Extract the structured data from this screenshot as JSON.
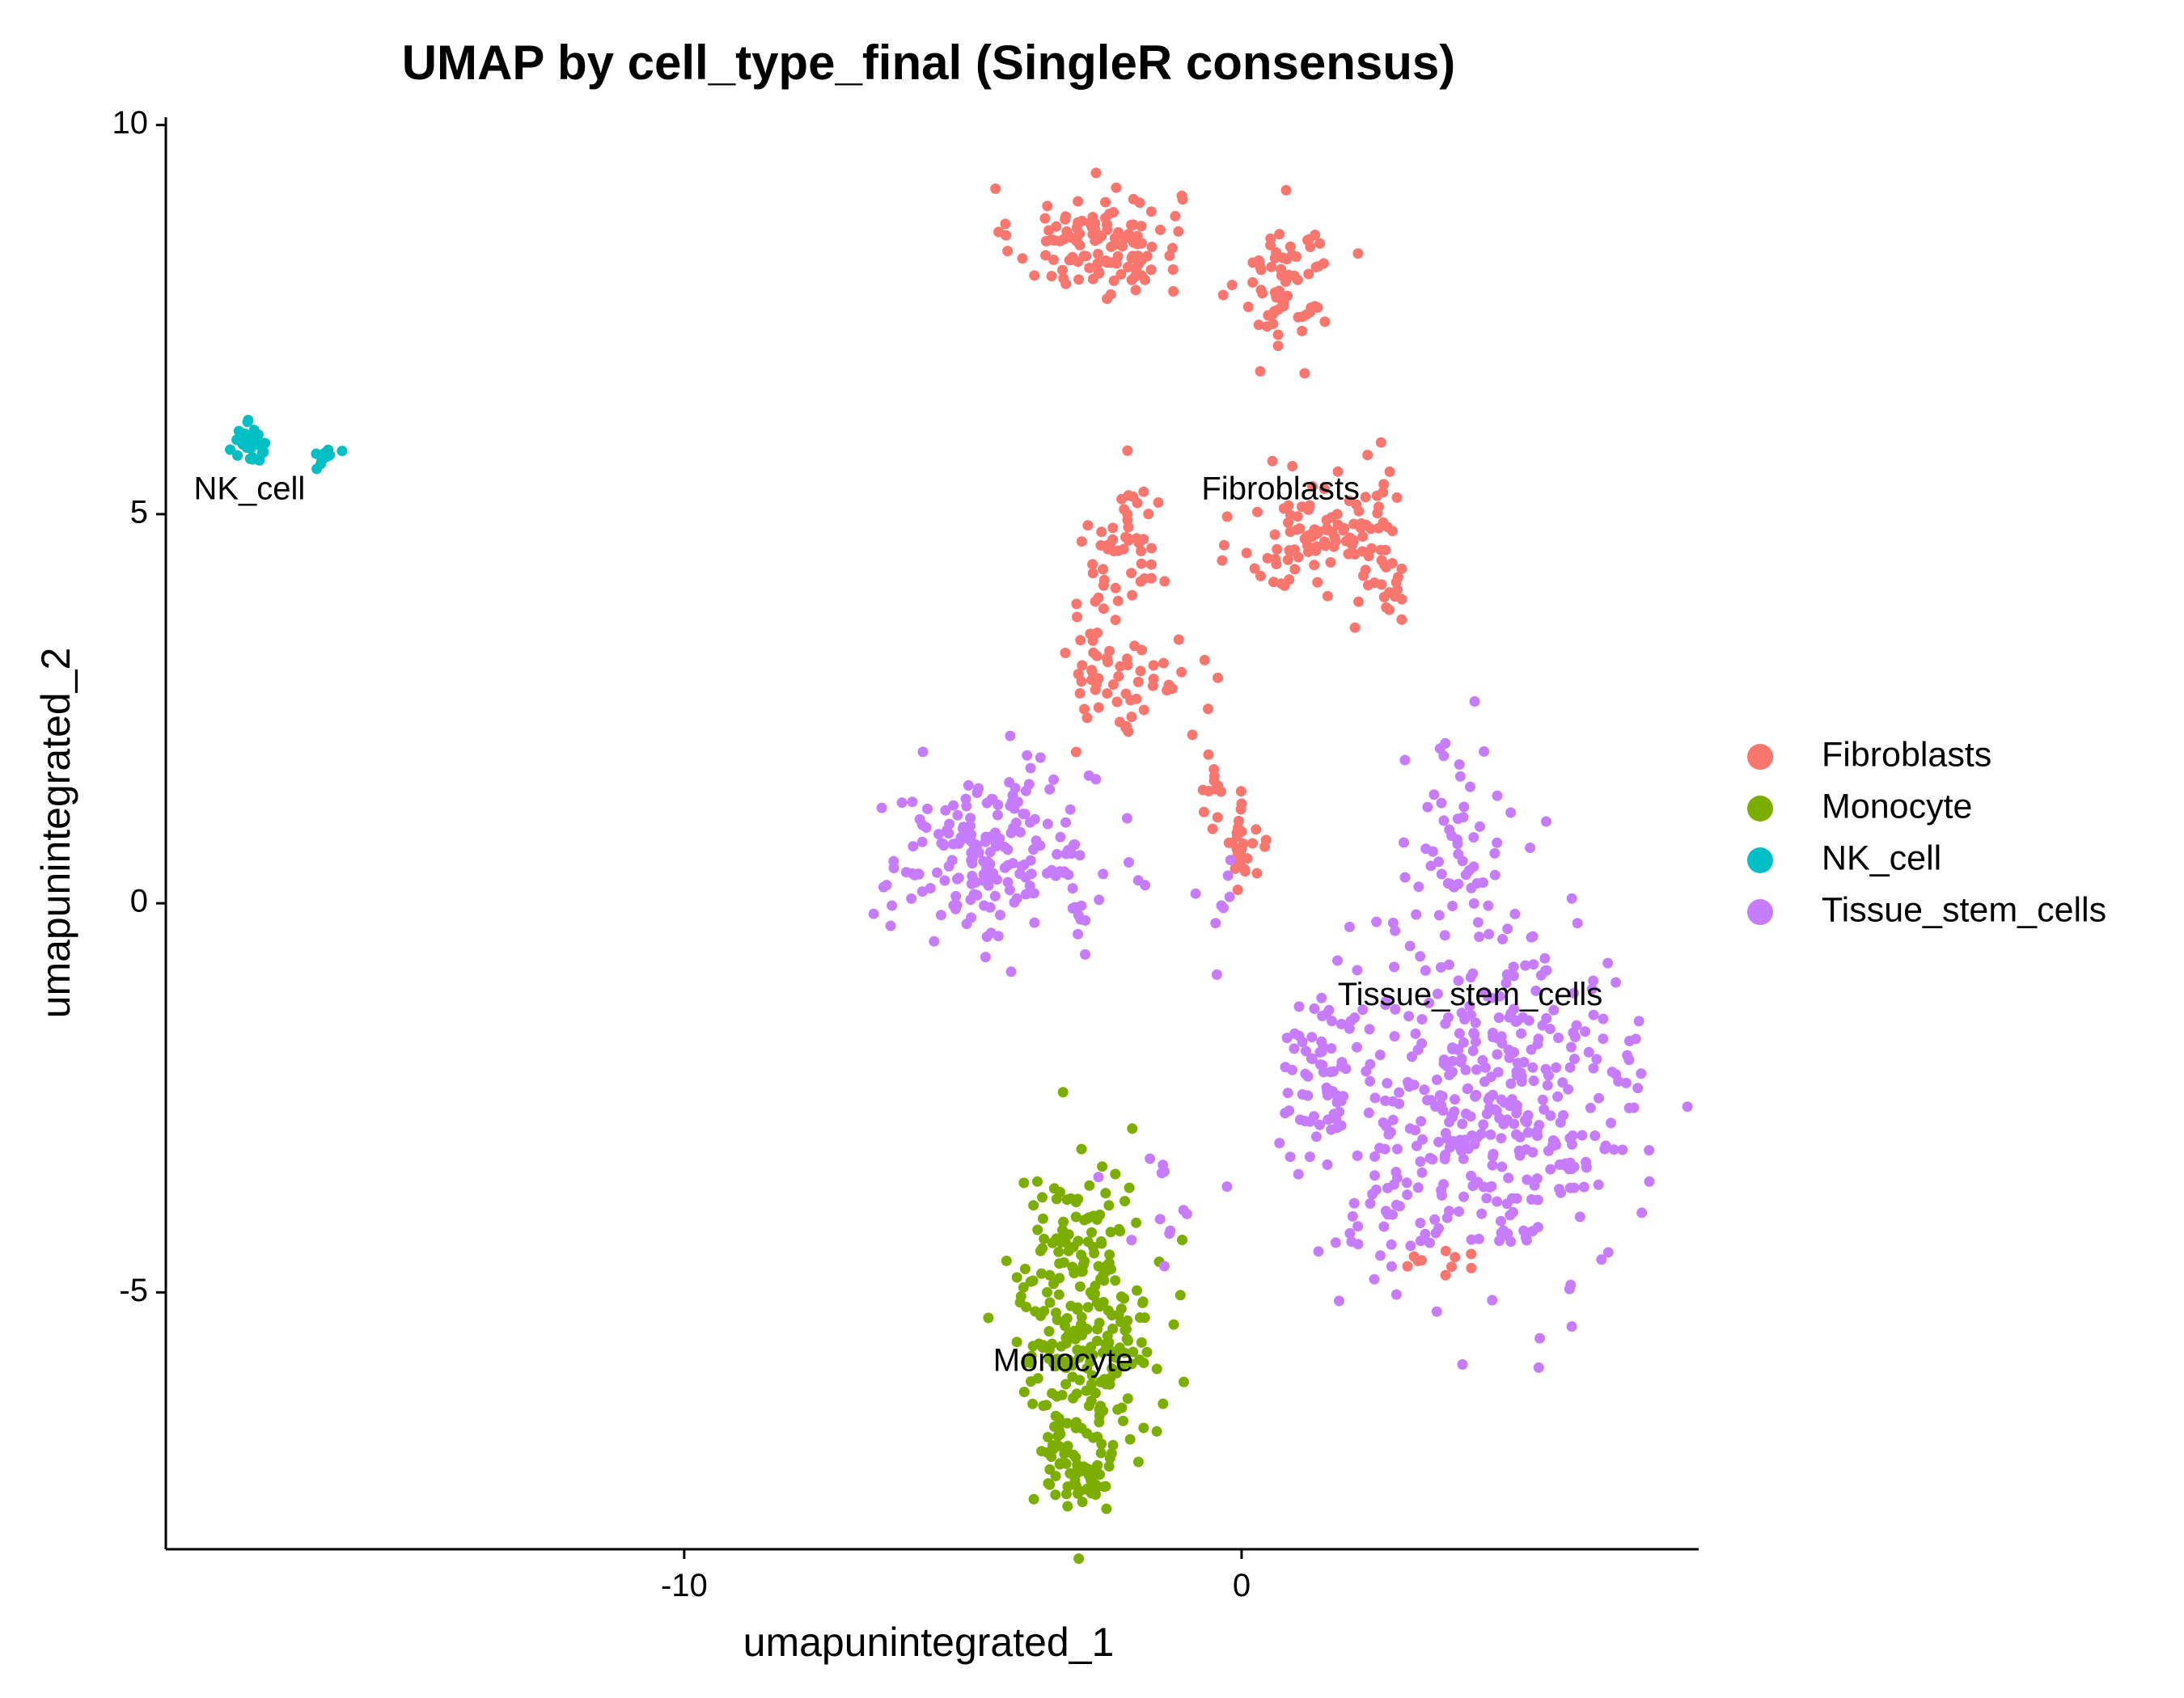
{
  "chart_data": {
    "type": "scatter",
    "title": "UMAP by cell_type_final (SingleR consensus)",
    "xlabel": "umapunintegrated_1",
    "ylabel": "umapunintegrated_2",
    "xlim": [
      -19.3,
      8.2
    ],
    "ylim": [
      -8.3,
      10.1
    ],
    "x_ticks": [
      -10,
      0
    ],
    "y_ticks": [
      -5,
      0,
      5,
      10
    ],
    "grid": false,
    "legend_position": "right",
    "series": [
      {
        "name": "Fibroblasts",
        "color": "#F8766D",
        "clusters": [
          {
            "cx": -2.6,
            "cy": 8.5,
            "sx": 0.75,
            "sy": 0.35,
            "n": 120
          },
          {
            "cx": 0.8,
            "cy": 8.0,
            "sx": 0.4,
            "sy": 0.45,
            "n": 70
          },
          {
            "cx": -2.0,
            "cy": 4.6,
            "sx": 0.35,
            "sy": 0.45,
            "n": 45
          },
          {
            "cx": -2.6,
            "cy": 3.2,
            "sx": 0.25,
            "sy": 0.55,
            "n": 35
          },
          {
            "cx": -1.7,
            "cy": 2.8,
            "sx": 0.5,
            "sy": 0.3,
            "n": 30
          },
          {
            "cx": 1.2,
            "cy": 4.7,
            "sx": 0.6,
            "sy": 0.35,
            "n": 80
          },
          {
            "cx": 2.5,
            "cy": 4.6,
            "sx": 0.3,
            "sy": 0.6,
            "n": 50
          },
          {
            "cx": 0.0,
            "cy": 0.8,
            "sx": 0.25,
            "sy": 0.35,
            "n": 30
          },
          {
            "cx": -0.6,
            "cy": 1.5,
            "sx": 0.2,
            "sy": 0.3,
            "n": 10
          },
          {
            "cx": 3.6,
            "cy": -4.5,
            "sx": 0.5,
            "sy": 0.15,
            "n": 10
          }
        ],
        "annotation": {
          "text": "Fibroblasts",
          "x": 0.7,
          "y": 5.3
        }
      },
      {
        "name": "Monocyte",
        "color": "#7CAE00",
        "clusters": [
          {
            "cx": -2.8,
            "cy": -5.3,
            "sx": 0.6,
            "sy": 0.95,
            "n": 260
          },
          {
            "cx": -2.9,
            "cy": -7.2,
            "sx": 0.4,
            "sy": 0.3,
            "n": 60
          }
        ],
        "annotation": {
          "text": "Monocyte",
          "x": -3.2,
          "y": -5.9
        }
      },
      {
        "name": "NK_cell",
        "color": "#00BFC4",
        "clusters": [
          {
            "cx": -17.8,
            "cy": 5.9,
            "sx": 0.15,
            "sy": 0.12,
            "n": 30
          },
          {
            "cx": -16.4,
            "cy": 5.75,
            "sx": 0.2,
            "sy": 0.06,
            "n": 12
          }
        ],
        "annotation": {
          "text": "NK_cell",
          "x": -17.8,
          "y": 5.3
        }
      },
      {
        "name": "Tissue_stem_cells",
        "color": "#C77CFF",
        "clusters": [
          {
            "cx": -4.5,
            "cy": 0.6,
            "sx": 0.95,
            "sy": 0.55,
            "n": 190
          },
          {
            "cx": -3.0,
            "cy": -0.3,
            "sx": 0.12,
            "sy": 0.25,
            "n": 6
          },
          {
            "cx": 4.6,
            "cy": -2.6,
            "sx": 1.3,
            "sy": 1.1,
            "n": 380
          },
          {
            "cx": 1.5,
            "cy": -2.1,
            "sx": 0.45,
            "sy": 0.55,
            "n": 70
          },
          {
            "cx": 3.8,
            "cy": 0.4,
            "sx": 0.45,
            "sy": 0.8,
            "n": 60
          },
          {
            "cx": -1.5,
            "cy": -3.8,
            "sx": 0.5,
            "sy": 0.5,
            "n": 12
          },
          {
            "cx": -0.3,
            "cy": -0.2,
            "sx": 0.2,
            "sy": 0.5,
            "n": 8
          },
          {
            "cx": 2.6,
            "cy": -3.9,
            "sx": 0.4,
            "sy": 0.35,
            "n": 20
          }
        ],
        "annotation": {
          "text": "Tissue_stem_cells",
          "x": 4.1,
          "y": -1.2
        }
      }
    ]
  }
}
